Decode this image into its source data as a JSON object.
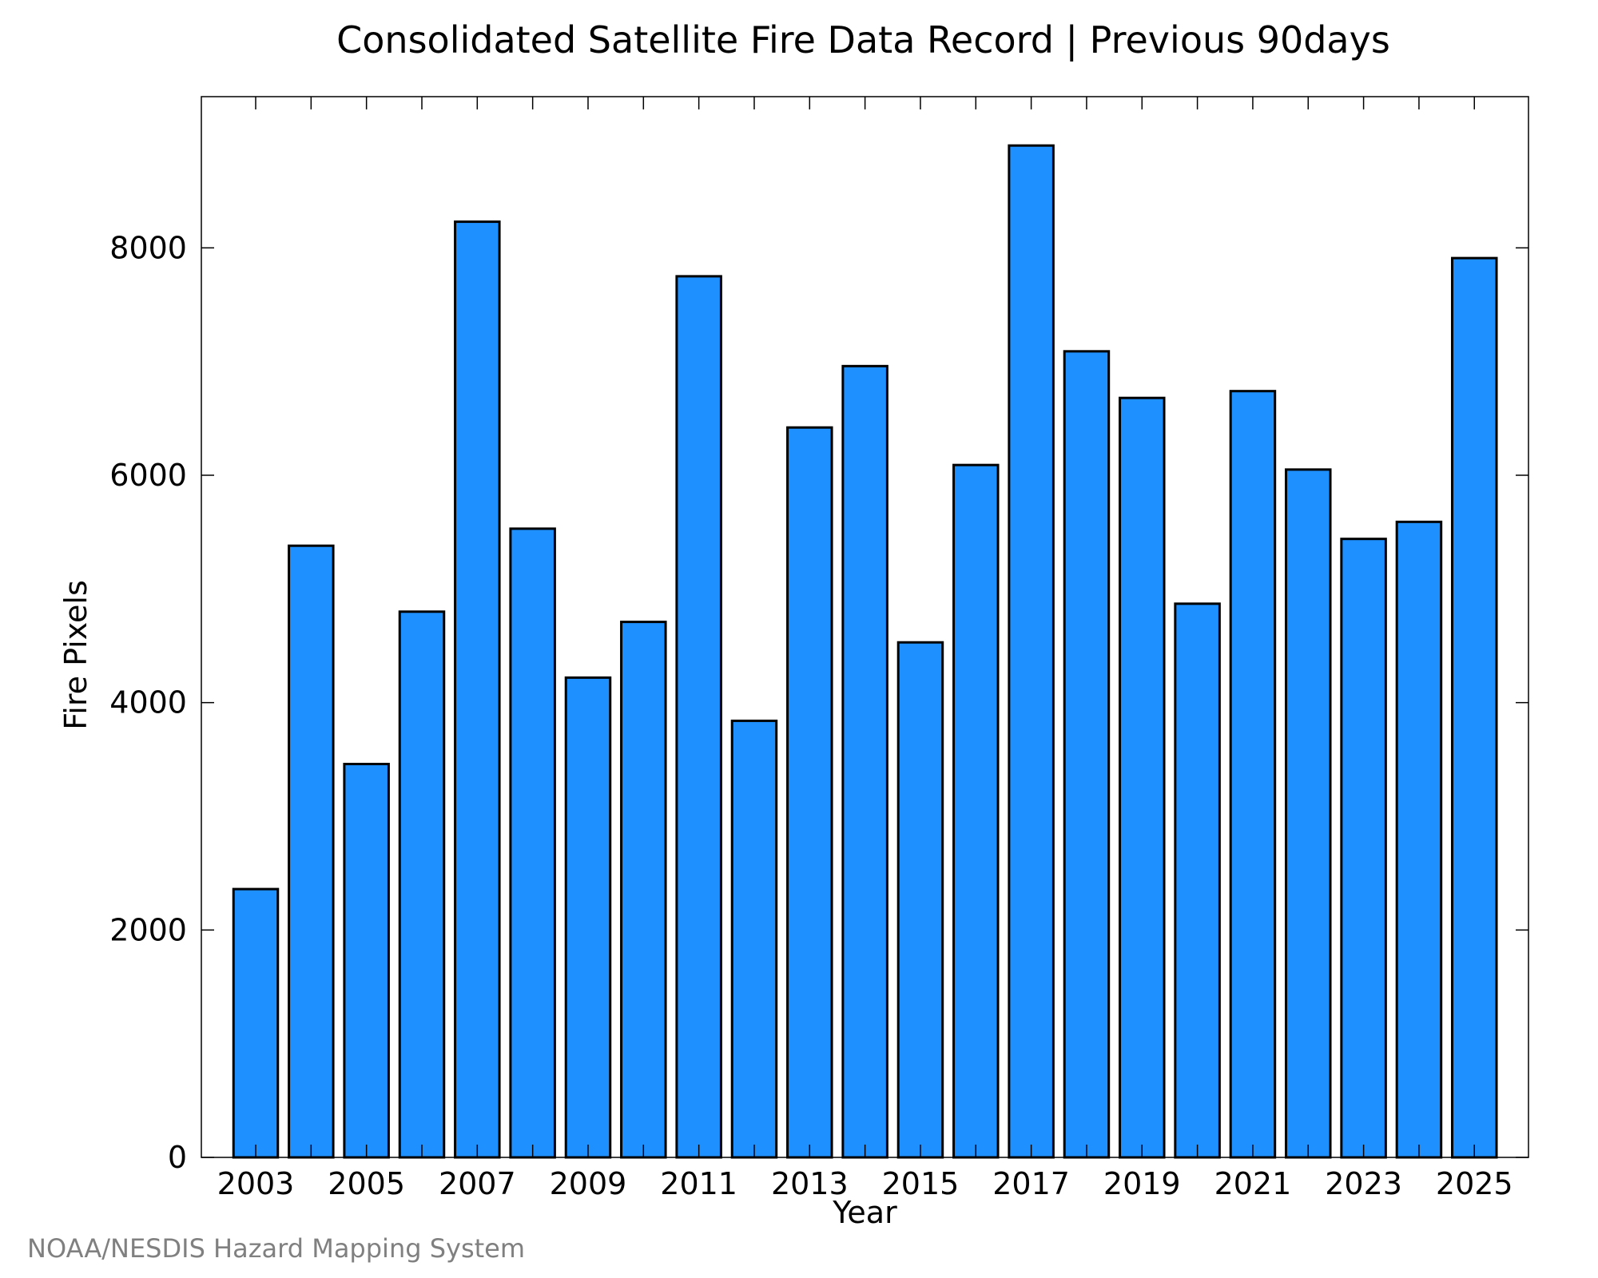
{
  "chart_data": {
    "type": "bar",
    "title": "Consolidated Satellite Fire Data Record | Previous 90days",
    "xlabel": "Year",
    "ylabel": "Fire Pixels",
    "categories": [
      "2003",
      "2004",
      "2005",
      "2006",
      "2007",
      "2008",
      "2009",
      "2010",
      "2011",
      "2012",
      "2013",
      "2014",
      "2015",
      "2016",
      "2017",
      "2018",
      "2019",
      "2020",
      "2021",
      "2022",
      "2023",
      "2024",
      "2025"
    ],
    "values": [
      2360,
      5380,
      3460,
      4800,
      8230,
      5530,
      4220,
      4710,
      7750,
      3840,
      6420,
      6960,
      4530,
      6090,
      8900,
      7090,
      6680,
      4870,
      6740,
      6050,
      5440,
      5590,
      7910
    ],
    "x_tick_labels": [
      "2003",
      "2005",
      "2007",
      "2009",
      "2011",
      "2013",
      "2015",
      "2017",
      "2019",
      "2021",
      "2023",
      "2025"
    ],
    "y_ticks": [
      0,
      2000,
      4000,
      6000,
      8000
    ],
    "y_tick_labels": [
      "0",
      "2000",
      "4000",
      "6000",
      "8000"
    ],
    "ylim": [
      0,
      9330
    ],
    "grid": false,
    "legend": "none",
    "bar_color": "#1E90FF",
    "bar_edge_color": "#000000"
  },
  "credit": "NOAA/NESDIS Hazard Mapping System"
}
